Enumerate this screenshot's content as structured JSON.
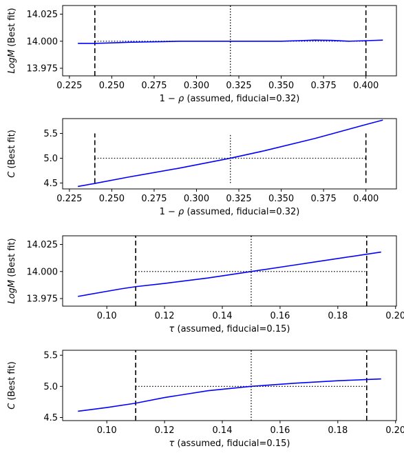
{
  "chart_data": [
    {
      "type": "line",
      "xlabel_pre": "1 − ",
      "xlabel_sym": "ρ",
      "xlabel_post": " (assumed, fiducial=0.32)",
      "ylabel_sym": "LogM",
      "ylabel_post": " (Best fit)",
      "xlim": [
        0.221,
        0.418
      ],
      "ylim": [
        13.968,
        14.033
      ],
      "x_ticks": [
        0.225,
        0.25,
        0.275,
        0.3,
        0.325,
        0.35,
        0.375,
        0.4
      ],
      "x_tick_labels": [
        "0.225",
        "0.250",
        "0.275",
        "0.300",
        "0.325",
        "0.350",
        "0.375",
        "0.400"
      ],
      "y_ticks": [
        13.975,
        14.0,
        14.025
      ],
      "y_tick_labels": [
        "13.975",
        "14.000",
        "14.025"
      ],
      "series": [
        {
          "color": "#0000ff",
          "x": [
            0.23,
            0.24,
            0.25,
            0.26,
            0.27,
            0.28,
            0.29,
            0.3,
            0.31,
            0.32,
            0.33,
            0.34,
            0.35,
            0.36,
            0.37,
            0.38,
            0.39,
            0.4,
            0.41
          ],
          "y": [
            13.998,
            13.998,
            13.9985,
            13.999,
            13.9993,
            13.9996,
            14.0,
            14.0,
            14.0,
            14.0,
            14.0,
            14.0,
            14.0,
            14.0005,
            14.001,
            14.0008,
            14.0,
            14.0005,
            14.001
          ]
        }
      ],
      "vlines": [
        {
          "x": 0.24,
          "style": "dashed",
          "ymin": 13.968,
          "ymax": 14.033
        },
        {
          "x": 0.32,
          "style": "dotted",
          "ymin": 13.968,
          "ymax": 14.033
        },
        {
          "x": 0.4,
          "style": "dashed",
          "ymin": 13.968,
          "ymax": 14.033
        }
      ],
      "hline": {
        "y": 14.0,
        "style": "dotted",
        "xmin": 0.24,
        "xmax": 0.4
      }
    },
    {
      "type": "line",
      "xlabel_pre": "1 − ",
      "xlabel_sym": "ρ",
      "xlabel_post": " (assumed, fiducial=0.32)",
      "ylabel_sym": "C",
      "ylabel_post": " (Best fit)",
      "xlim": [
        0.221,
        0.418
      ],
      "ylim": [
        4.38,
        5.8
      ],
      "x_ticks": [
        0.225,
        0.25,
        0.275,
        0.3,
        0.325,
        0.35,
        0.375,
        0.4
      ],
      "x_tick_labels": [
        "0.225",
        "0.250",
        "0.275",
        "0.300",
        "0.325",
        "0.350",
        "0.375",
        "0.400"
      ],
      "y_ticks": [
        4.5,
        5.0,
        5.5
      ],
      "y_tick_labels": [
        "4.5",
        "5.0",
        "5.5"
      ],
      "series": [
        {
          "color": "#0000ff",
          "x": [
            0.23,
            0.24,
            0.26,
            0.29,
            0.32,
            0.34,
            0.37,
            0.4,
            0.41
          ],
          "y": [
            4.43,
            4.49,
            4.62,
            4.8,
            5.0,
            5.15,
            5.4,
            5.68,
            5.77
          ]
        }
      ],
      "vlines": [
        {
          "x": 0.24,
          "style": "dashed",
          "ymin": 4.5,
          "ymax": 5.5
        },
        {
          "x": 0.32,
          "style": "dotted",
          "ymin": 4.5,
          "ymax": 5.5
        },
        {
          "x": 0.4,
          "style": "dashed",
          "ymin": 4.5,
          "ymax": 5.5
        }
      ],
      "hline": {
        "y": 5.0,
        "style": "dotted",
        "xmin": 0.24,
        "xmax": 0.4
      }
    },
    {
      "type": "line",
      "xlabel_pre": "",
      "xlabel_sym": "τ",
      "xlabel_post": " (assumed, fiducial=0.15)",
      "ylabel_sym": "LogM",
      "ylabel_post": " (Best fit)",
      "xlim": [
        0.0847,
        0.2003
      ],
      "ylim": [
        13.968,
        14.033
      ],
      "x_ticks": [
        0.1,
        0.12,
        0.14,
        0.16,
        0.18,
        0.2
      ],
      "x_tick_labels": [
        "0.10",
        "0.12",
        "0.14",
        "0.16",
        "0.18",
        "0.20"
      ],
      "y_ticks": [
        13.975,
        14.0,
        14.025
      ],
      "y_tick_labels": [
        "13.975",
        "14.000",
        "14.025"
      ],
      "series": [
        {
          "color": "#0000ff",
          "x": [
            0.09,
            0.105,
            0.11,
            0.12,
            0.135,
            0.15,
            0.165,
            0.18,
            0.19,
            0.195
          ],
          "y": [
            13.977,
            13.984,
            13.986,
            13.989,
            13.994,
            14.0,
            14.006,
            14.012,
            14.016,
            14.018
          ]
        }
      ],
      "vlines": [
        {
          "x": 0.11,
          "style": "dashed",
          "ymin": 13.968,
          "ymax": 14.033
        },
        {
          "x": 0.15,
          "style": "dotted",
          "ymin": 13.968,
          "ymax": 14.033
        },
        {
          "x": 0.19,
          "style": "dashed",
          "ymin": 13.968,
          "ymax": 14.033
        }
      ],
      "hline": {
        "y": 14.0,
        "style": "dotted",
        "xmin": 0.11,
        "xmax": 0.19
      }
    },
    {
      "type": "line",
      "xlabel_pre": "",
      "xlabel_sym": "τ",
      "xlabel_post": " (assumed, fiducial=0.15)",
      "ylabel_sym": "C",
      "ylabel_post": " (Best fit)",
      "xlim": [
        0.0847,
        0.2003
      ],
      "ylim": [
        4.45,
        5.58
      ],
      "x_ticks": [
        0.1,
        0.12,
        0.14,
        0.16,
        0.18,
        0.2
      ],
      "x_tick_labels": [
        "0.10",
        "0.12",
        "0.14",
        "0.16",
        "0.18",
        "0.20"
      ],
      "y_ticks": [
        4.5,
        5.0,
        5.5
      ],
      "y_tick_labels": [
        "4.5",
        "5.0",
        "5.5"
      ],
      "series": [
        {
          "color": "#0000ff",
          "x": [
            0.09,
            0.1,
            0.11,
            0.12,
            0.135,
            0.15,
            0.165,
            0.18,
            0.19,
            0.195
          ],
          "y": [
            4.6,
            4.66,
            4.73,
            4.82,
            4.93,
            5.0,
            5.05,
            5.09,
            5.11,
            5.12
          ]
        }
      ],
      "vlines": [
        {
          "x": 0.11,
          "style": "dashed",
          "ymin": 4.45,
          "ymax": 5.58
        },
        {
          "x": 0.15,
          "style": "dotted",
          "ymin": 4.45,
          "ymax": 5.58
        },
        {
          "x": 0.19,
          "style": "dashed",
          "ymin": 4.45,
          "ymax": 5.58
        }
      ],
      "hline": {
        "y": 5.0,
        "style": "dotted",
        "xmin": 0.11,
        "xmax": 0.19
      }
    }
  ]
}
